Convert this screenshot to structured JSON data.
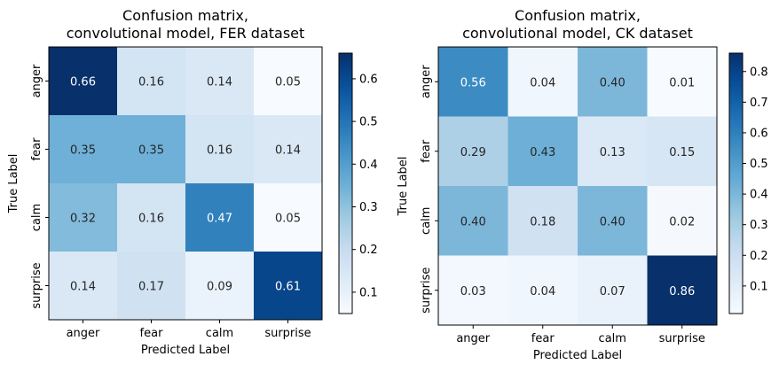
{
  "chart_data": [
    {
      "type": "heatmap",
      "title": "Confusion matrix,\nconvolutional model, FER dataset",
      "title_lines": [
        "Confusion matrix,",
        "convolutional model, FER dataset"
      ],
      "xlabel": "Predicted Label",
      "ylabel": "True Label",
      "x_categories": [
        "anger",
        "fear",
        "calm",
        "surprise"
      ],
      "y_categories": [
        "anger",
        "fear",
        "calm",
        "surprise"
      ],
      "values": [
        [
          0.66,
          0.16,
          0.14,
          0.05
        ],
        [
          0.35,
          0.35,
          0.16,
          0.14
        ],
        [
          0.32,
          0.16,
          0.47,
          0.05
        ],
        [
          0.14,
          0.17,
          0.09,
          0.61
        ]
      ],
      "value_labels": [
        [
          "0.66",
          "0.16",
          "0.14",
          "0.05"
        ],
        [
          "0.35",
          "0.35",
          "0.16",
          "0.14"
        ],
        [
          "0.32",
          "0.16",
          "0.47",
          "0.05"
        ],
        [
          "0.14",
          "0.17",
          "0.09",
          "0.61"
        ]
      ],
      "colormap": "Blues",
      "colorbar": {
        "range": [
          0.05,
          0.66
        ],
        "ticks": [
          0.1,
          0.2,
          0.3,
          0.4,
          0.5,
          0.6
        ],
        "tick_labels": [
          "0.1",
          "0.2",
          "0.3",
          "0.4",
          "0.5",
          "0.6"
        ]
      }
    },
    {
      "type": "heatmap",
      "title": "Confusion matrix,\nconvolutional model, CK dataset",
      "title_lines": [
        "Confusion matrix,",
        "convolutional model, CK dataset"
      ],
      "xlabel": "Predicted Label",
      "ylabel": "True Label",
      "x_categories": [
        "anger",
        "fear",
        "calm",
        "surprise"
      ],
      "y_categories": [
        "anger",
        "fear",
        "calm",
        "surprise"
      ],
      "values": [
        [
          0.56,
          0.04,
          0.4,
          0.01
        ],
        [
          0.29,
          0.43,
          0.13,
          0.15
        ],
        [
          0.4,
          0.18,
          0.4,
          0.02
        ],
        [
          0.03,
          0.04,
          0.07,
          0.86
        ]
      ],
      "value_labels": [
        [
          "0.56",
          "0.04",
          "0.40",
          "0.01"
        ],
        [
          "0.29",
          "0.43",
          "0.13",
          "0.15"
        ],
        [
          "0.40",
          "0.18",
          "0.40",
          "0.02"
        ],
        [
          "0.03",
          "0.04",
          "0.07",
          "0.86"
        ]
      ],
      "colormap": "Blues",
      "colorbar": {
        "range": [
          0.01,
          0.86
        ],
        "ticks": [
          0.1,
          0.2,
          0.3,
          0.4,
          0.5,
          0.6,
          0.7,
          0.8
        ],
        "tick_labels": [
          "0.1",
          "0.2",
          "0.3",
          "0.4",
          "0.5",
          "0.6",
          "0.7",
          "0.8"
        ]
      }
    }
  ],
  "colors": {
    "text_dark": "#262626",
    "text_light": "#ffffff",
    "axis": "#000000"
  },
  "blues_stops": [
    "#f7fbff",
    "#deebf7",
    "#c6dbef",
    "#9ecae1",
    "#6baed6",
    "#4292c6",
    "#2171b5",
    "#08519c",
    "#08306b"
  ]
}
